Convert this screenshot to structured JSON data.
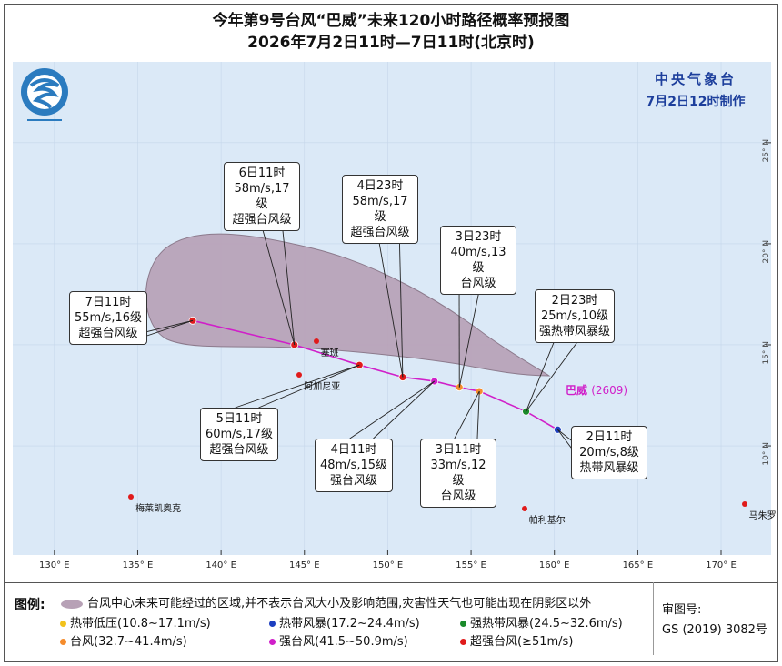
{
  "title": {
    "line1": "今年第9号台风“巴威”未来120小时路径概率预报图",
    "line2": "2026年7月2日11时—7日11时(北京时)"
  },
  "agency": {
    "name": "中央气象台",
    "issued": "7月2日12时制作"
  },
  "storm": {
    "name": "巴威",
    "code": "(2609)"
  },
  "colors": {
    "sea": "#dbe9f7",
    "cone": "#b7a1b6",
    "track": "#d01fc9",
    "tropical_depression": "#f2c21c",
    "tropical_storm": "#1d3fc0",
    "severe_tropical_storm": "#1a8a2a",
    "typhoon": "#f58c2c",
    "severe_typhoon": "#d01fc9",
    "super_typhoon": "#e01b1b"
  },
  "track_points": [
    {
      "time": "2日11时",
      "lat": 10.8,
      "lon": 160.2,
      "speed": "20m/s,8级",
      "level": "热带风暴级",
      "category": "tropical_storm"
    },
    {
      "time": "2日23时",
      "lat": 11.7,
      "lon": 158.3,
      "speed": "25m/s,10级",
      "level": "强热带风暴级",
      "category": "severe_tropical_storm"
    },
    {
      "time": "3日11时",
      "lat": 12.7,
      "lon": 155.5,
      "speed": "33m/s,12级",
      "level": "台风级",
      "category": "typhoon"
    },
    {
      "time": "3日23时",
      "lat": 12.9,
      "lon": 154.3,
      "speed": "40m/s,13级",
      "level": "台风级",
      "category": "typhoon"
    },
    {
      "time": "4日11时",
      "lat": 13.2,
      "lon": 152.8,
      "speed": "48m/s,15级",
      "level": "强台风级",
      "category": "severe_typhoon"
    },
    {
      "time": "4日23时",
      "lat": 13.4,
      "lon": 150.9,
      "speed": "58m/s,17级",
      "level": "超强台风级",
      "category": "super_typhoon"
    },
    {
      "time": "5日11时",
      "lat": 14.0,
      "lon": 148.3,
      "speed": "60m/s,17级",
      "level": "超强台风级",
      "category": "super_typhoon"
    },
    {
      "time": "6日11时",
      "lat": 15.0,
      "lon": 144.4,
      "speed": "58m/s,17级",
      "level": "超强台风级",
      "category": "super_typhoon"
    },
    {
      "time": "7日11时",
      "lat": 16.2,
      "lon": 138.3,
      "speed": "55m/s,16级",
      "level": "超强台风级",
      "category": "super_typhoon"
    }
  ],
  "places": [
    {
      "name": "塞班",
      "lat": 15.2,
      "lon": 145.7
    },
    {
      "name": "阿加尼亚",
      "lat": 13.5,
      "lon": 144.7
    },
    {
      "name": "梅莱凯奥克",
      "lat": 7.5,
      "lon": 134.6
    },
    {
      "name": "帕利基尔",
      "lat": 6.9,
      "lon": 158.2
    },
    {
      "name": "马朱罗",
      "lat": 7.1,
      "lon": 171.4
    }
  ],
  "axes": {
    "lon_ticks": [
      "130° E",
      "135° E",
      "140° E",
      "145° E",
      "150° E",
      "155° E",
      "160° E",
      "165° E",
      "170° E"
    ],
    "lat_ticks": [
      "25° N",
      "20° N",
      "15° N",
      "10° N"
    ],
    "lon_range": [
      127.5,
      173
    ],
    "lat_range": [
      4.6,
      29
    ]
  },
  "legend": {
    "title": "图例:",
    "cone_text": "台风中心未来可能经过的区域,并不表示台风大小及影响范围,灾害性天气也可能出现在阴影区以外",
    "items": [
      {
        "label": "热带低压(10.8~17.1m/s)",
        "category": "tropical_depression"
      },
      {
        "label": "热带风暴(17.2~24.4m/s)",
        "category": "tropical_storm"
      },
      {
        "label": "强热带风暴(24.5~32.6m/s)",
        "category": "severe_tropical_storm"
      },
      {
        "label": "台风(32.7~41.4m/s)",
        "category": "typhoon"
      },
      {
        "label": "强台风(41.5~50.9m/s)",
        "category": "severe_typhoon"
      },
      {
        "label": "超强台风(≥51m/s)",
        "category": "super_typhoon"
      }
    ]
  },
  "review": {
    "label": "审图号:",
    "number": "GS (2019) 3082号"
  }
}
